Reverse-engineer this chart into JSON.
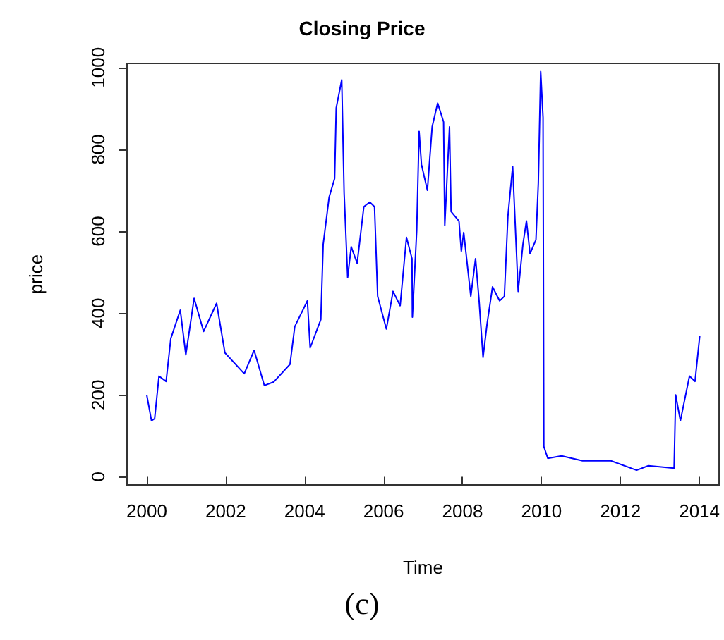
{
  "chart_data": {
    "type": "line",
    "title": "Closing Price",
    "xlabel": "Time",
    "ylabel": "price",
    "annotations": [
      "(c)"
    ],
    "x": [
      2000.0,
      2000.12,
      2000.2,
      2000.31,
      2000.49,
      2000.61,
      2000.85,
      2000.99,
      2001.2,
      2001.44,
      2001.77,
      2001.98,
      2002.47,
      2002.72,
      2002.98,
      2003.22,
      2003.63,
      2003.75,
      2004.07,
      2004.14,
      2004.41,
      2004.47,
      2004.62,
      2004.76,
      2004.8,
      2004.94,
      2005.0,
      2005.09,
      2005.18,
      2005.33,
      2005.5,
      2005.65,
      2005.77,
      2005.85,
      2006.07,
      2006.24,
      2006.42,
      2006.58,
      2006.72,
      2006.73,
      2006.84,
      2006.9,
      2006.96,
      2007.11,
      2007.23,
      2007.37,
      2007.52,
      2007.55,
      2007.67,
      2007.71,
      2007.91,
      2007.97,
      2008.03,
      2008.21,
      2008.33,
      2008.42,
      2008.52,
      2008.62,
      2008.76,
      2008.94,
      2009.06,
      2009.15,
      2009.27,
      2009.41,
      2009.53,
      2009.62,
      2009.71,
      2009.86,
      2009.92,
      2009.98,
      2010.04,
      2010.06,
      2010.16,
      2010.51,
      2011.04,
      2011.76,
      2012.41,
      2012.71,
      2013.36,
      2013.4,
      2013.52,
      2013.75,
      2013.89,
      2014.01
    ],
    "series": [
      {
        "color": "#0000ff",
        "values": [
          200,
          137,
          142,
          246,
          233,
          338,
          407,
          298,
          436,
          355,
          424,
          303,
          252,
          309,
          223,
          232,
          275,
          367,
          430,
          315,
          384,
          568,
          683,
          729,
          901,
          970,
          694,
          487,
          562,
          522,
          660,
          671,
          660,
          441,
          361,
          453,
          418,
          585,
          533,
          390,
          602,
          844,
          763,
          700,
          855,
          913,
          867,
          614,
          855,
          648,
          625,
          551,
          597,
          441,
          533,
          430,
          292,
          372,
          464,
          430,
          441,
          637,
          758,
          453,
          568,
          625,
          545,
          579,
          717,
          990,
          878,
          74,
          45,
          51,
          39,
          39,
          16,
          27,
          21,
          200,
          137,
          246,
          233,
          344
        ]
      }
    ],
    "xlim": [
      1999.5,
      2014.5
    ],
    "ylim": [
      -20,
      1010
    ],
    "xticks": [
      2000,
      2002,
      2004,
      2006,
      2008,
      2010,
      2012,
      2014
    ],
    "yticks": [
      0,
      200,
      400,
      600,
      800,
      1000
    ],
    "marker": "none",
    "line_style": "solid"
  }
}
